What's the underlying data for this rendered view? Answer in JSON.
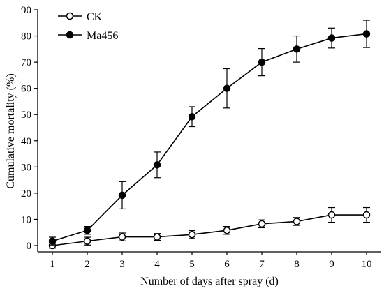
{
  "chart_data": {
    "type": "line",
    "xlabel": "Number of days after spray (d)",
    "ylabel": "Cumulative mortality (%)",
    "x": [
      1,
      2,
      3,
      4,
      5,
      6,
      7,
      8,
      9,
      10
    ],
    "xlim": [
      1,
      10
    ],
    "ylim": [
      0,
      90
    ],
    "xticks": [
      "1",
      "2",
      "3",
      "4",
      "5",
      "6",
      "7",
      "8",
      "9",
      "10"
    ],
    "yticks": [
      "0",
      "10",
      "20",
      "30",
      "40",
      "50",
      "60",
      "70",
      "80",
      "90"
    ],
    "grid": false,
    "legend_position": "top-left",
    "series": [
      {
        "name": "CK",
        "marker": "open-circle",
        "values": [
          0,
          1.7,
          3.3,
          3.3,
          4.2,
          5.8,
          8.3,
          9.2,
          11.7,
          11.7
        ],
        "errors": [
          1.0,
          1.5,
          1.5,
          1.3,
          1.5,
          1.5,
          1.5,
          1.5,
          2.8,
          2.8
        ]
      },
      {
        "name": "Ma456",
        "marker": "filled-circle",
        "values": [
          1.7,
          5.8,
          19.2,
          30.8,
          49.2,
          60.0,
          70.0,
          75.0,
          79.2,
          80.8
        ],
        "errors": [
          1.5,
          1.5,
          5.2,
          4.9,
          3.8,
          7.5,
          5.2,
          5.0,
          3.8,
          5.2
        ]
      }
    ]
  }
}
